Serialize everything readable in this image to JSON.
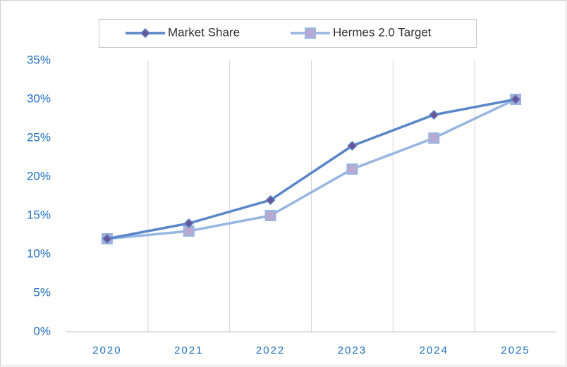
{
  "chart_data": {
    "type": "line",
    "categories": [
      "2020",
      "2021",
      "2022",
      "2023",
      "2024",
      "2025"
    ],
    "series": [
      {
        "name": "Market Share",
        "color": "#5a86c8",
        "marker": "diamond",
        "marker_color": "#6b5596",
        "values": [
          12,
          14,
          17,
          24,
          28,
          30
        ]
      },
      {
        "name": "Hermes 2.0 Target",
        "color": "#97b6e2",
        "marker": "square",
        "marker_color": "#b9a8cf",
        "values": [
          12,
          13,
          15,
          21,
          25,
          30
        ]
      }
    ],
    "ylim": [
      0,
      35
    ],
    "yticks": [
      {
        "value": 0,
        "label": "0%"
      },
      {
        "value": 5,
        "label": "5%"
      },
      {
        "value": 10,
        "label": "10%"
      },
      {
        "value": 15,
        "label": "15%"
      },
      {
        "value": 20,
        "label": "20%"
      },
      {
        "value": 25,
        "label": "25%"
      },
      {
        "value": 30,
        "label": "30%"
      },
      {
        "value": 35,
        "label": "35%"
      }
    ],
    "xgrid": true,
    "legend": "top"
  }
}
